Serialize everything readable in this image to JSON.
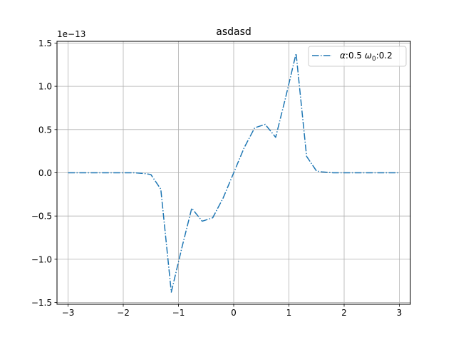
{
  "chart_data": {
    "type": "line",
    "title": "asdasd",
    "xlabel": "",
    "ylabel": "",
    "y_offset_label": "1e−13",
    "xlim": [
      -3.2,
      3.2
    ],
    "ylim": [
      -1.52,
      1.52
    ],
    "x_ticks": [
      -3,
      -2,
      -1,
      0,
      1,
      2,
      3
    ],
    "x_tick_labels": [
      "−3",
      "−2",
      "−1",
      "0",
      "1",
      "2",
      "3"
    ],
    "y_ticks": [
      -1.5,
      -1.0,
      -0.5,
      0.0,
      0.5,
      1.0,
      1.5
    ],
    "y_tick_labels": [
      "−1.5",
      "−1.0",
      "−0.5",
      "0.0",
      "0.5",
      "1.0",
      "1.5"
    ],
    "grid": true,
    "legend_placement": "top-right",
    "series": [
      {
        "name_parts": {
          "alpha_sym": "α",
          "alpha_rest": ":0.5 ",
          "omega_sym": "ω",
          "omega_sub": "0",
          "omega_rest": ":0.2"
        },
        "color": "#1f77b4",
        "linestyle": "dash-dot",
        "x": [
          -3.0,
          -2.8,
          -2.6,
          -2.4,
          -2.2,
          -2.0,
          -1.8,
          -1.6,
          -1.5,
          -1.32,
          -1.13,
          -0.94,
          -0.76,
          -0.57,
          -0.38,
          -0.19,
          0.0,
          0.19,
          0.38,
          0.57,
          0.76,
          0.94,
          1.13,
          1.32,
          1.5,
          1.6,
          1.8,
          2.0,
          2.2,
          2.4,
          2.6,
          2.8,
          3.0
        ],
        "y": [
          0.0,
          0.0,
          0.0,
          0.0,
          0.0,
          0.0,
          0.0,
          -0.01,
          -0.02,
          -0.19,
          -1.38,
          -0.87,
          -0.41,
          -0.56,
          -0.52,
          -0.29,
          0.0,
          0.29,
          0.52,
          0.56,
          0.41,
          0.87,
          1.38,
          0.19,
          0.02,
          0.01,
          0.0,
          0.0,
          0.0,
          0.0,
          0.0,
          0.0,
          0.0
        ]
      }
    ]
  }
}
